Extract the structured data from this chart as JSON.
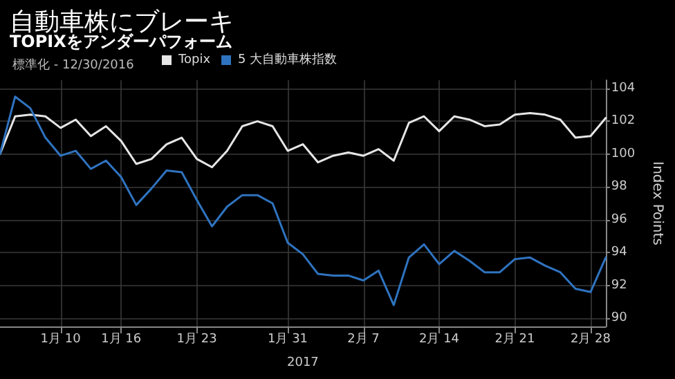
{
  "chart_data": {
    "type": "line",
    "title": "自動車株にブレーキ",
    "subtitle": "TOPIXをアンダーパフォーム",
    "legend_title": "標準化 - 12/30/2016",
    "xlabel": "2017",
    "ylabel": "Index Points",
    "categories": [
      null,
      null,
      null,
      null,
      "1月 10",
      null,
      null,
      null,
      "1月 16",
      null,
      null,
      null,
      null,
      "1月 23",
      null,
      null,
      null,
      null,
      null,
      "1月 31",
      null,
      null,
      null,
      null,
      "2月 7",
      null,
      null,
      null,
      null,
      "2月 14",
      null,
      null,
      null,
      null,
      "2月 21",
      null,
      null,
      null,
      null,
      "2月 28",
      null
    ],
    "series": [
      {
        "name": "Topix",
        "color": "#e6e6e6",
        "values": [
          100.0,
          102.3,
          102.4,
          102.3,
          101.6,
          102.1,
          101.1,
          101.7,
          100.8,
          99.4,
          99.7,
          100.6,
          101.0,
          99.7,
          99.2,
          100.2,
          101.7,
          102.0,
          101.7,
          100.2,
          100.6,
          99.5,
          99.9,
          100.1,
          99.9,
          100.3,
          99.6,
          101.9,
          102.3,
          101.4,
          102.3,
          102.1,
          101.7,
          101.8,
          102.4,
          102.5,
          102.4,
          102.1,
          101.0,
          101.1,
          102.2
        ]
      },
      {
        "name": "5 大自動車株指数",
        "color": "#2f73c0",
        "values": [
          100.0,
          103.5,
          102.8,
          101.0,
          99.9,
          100.2,
          99.1,
          99.6,
          98.6,
          96.9,
          97.9,
          99.0,
          98.9,
          97.2,
          95.6,
          96.8,
          97.5,
          97.5,
          97.0,
          94.6,
          93.9,
          92.7,
          92.6,
          92.6,
          92.3,
          92.9,
          90.8,
          93.7,
          94.5,
          93.3,
          94.1,
          93.5,
          92.8,
          92.8,
          93.6,
          93.7,
          93.2,
          92.8,
          91.8,
          91.6,
          93.7
        ]
      }
    ],
    "ylim": [
      89.5,
      104.5
    ],
    "yticks": [
      90,
      92,
      94,
      96,
      98,
      100,
      102,
      104
    ],
    "grid": true,
    "legend": "top left",
    "marker": "none",
    "line_style": "solid"
  }
}
